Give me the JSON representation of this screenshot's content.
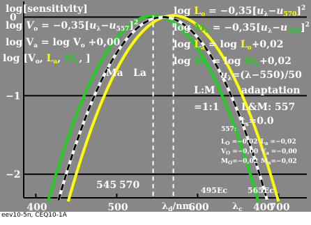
{
  "colors": {
    "background": "#878787",
    "green": "#22cc22",
    "yellow": "#ffff00",
    "white": "#ffffff",
    "black": "#000000",
    "axis": "#000000"
  },
  "header": {
    "left": {
      "line1": "log[sensitivity]",
      "line2_a": "log ",
      "line2_b": "V",
      "line2_c": "o",
      "line2_d": " = −0,35[",
      "line2_e": "u",
      "line2_f": "λ",
      "line2_g": "−",
      "line2_h": "u",
      "line2_i": "557",
      "line2_j": "]",
      "line2_k": "2",
      "line3": "log V",
      "line3_sub": "a",
      "line3_rest": " = log V",
      "line3_sub2": "o",
      "line3_end": " +0,00",
      "line4_a": "log [V",
      "line4_sub": "o",
      "line4_b": ", ",
      "line4_la": "L",
      "line4_la_sub": "a",
      "line4_c": ", ",
      "line4_ma": "M",
      "line4_ma_sub": "a",
      "line4_d": ", ]"
    },
    "right": {
      "r1_a": "log ",
      "r1_b": "L",
      "r1_c": "o",
      "r1_d": " = −0,35[",
      "r1_e": "u",
      "r1_f": "λ",
      "r1_g": "−",
      "r1_h": "u",
      "r1_i": "570",
      "r1_j": "]",
      "r1_k": "2",
      "r2_a": "log ",
      "r2_b": "M",
      "r2_c": "o",
      "r2_d": " = −0,35[",
      "r2_e": "u",
      "r2_f": "λ",
      "r2_g": "−",
      "r2_h": "u",
      "r2_i": "545",
      "r2_j": "]",
      "r2_k": "2",
      "r3_a": "log ",
      "r3_b": "L",
      "r3_c": "a",
      "r3_d": " = log ",
      "r3_e": "L",
      "r3_f": "o",
      "r3_g": "+0,02",
      "r4_a": "log ",
      "r4_b": "M",
      "r4_c": "a",
      "r4_d": " = log ",
      "r4_e": "M",
      "r4_f": "o",
      "r4_g": "+0,02",
      "r5_a": "u",
      "r5_b": "λ",
      "r5_c": "=(λ−550)/50"
    }
  },
  "panel": {
    "lm_title": "L:M",
    "lm_value": "=1:1",
    "adapt_title": "adaptation",
    "adapt_value": "L&M: 557",
    "ts": "t",
    "ts_sub": "s",
    "ts_val": "=0.0",
    "block_title": "557:",
    "rows": [
      {
        "l1": "L",
        "l1s": "O",
        "l1v": " =−0,02",
        "l2": "L",
        "l2s": "a",
        "l2v": " =−0,02"
      },
      {
        "l1": "V",
        "l1s": "O",
        "l1v": " =−0,00",
        "l2": "V",
        "l2s": "a",
        "l2v": " =−0,00"
      },
      {
        "l1": "M",
        "l1s": "O",
        "l1v": "=−0,02",
        "l2": "M",
        "l2s": "a",
        "l2v": "=−0,02"
      }
    ]
  },
  "labels": {
    "ma": "Ma",
    "la": "La",
    "l545": "545",
    "l570": "570",
    "ec495": "495Ec",
    "ec565": "565Ec",
    "xlabel_d": "λ",
    "xlabel_d_sub": "d",
    "xlabel_unit": "/nm",
    "xlabel_c": "λ",
    "xlabel_c_sub": "c"
  },
  "footer": "eev10-5n, CEQ10-1A",
  "chart_data": {
    "type": "line",
    "x_axis": {
      "ticks": [
        400,
        500,
        600,
        700
      ],
      "extra_tick_label": "400",
      "range": [
        385,
        735
      ]
    },
    "y_axis": {
      "ticks": [
        0,
        -1,
        -2
      ],
      "range": [
        -2.3,
        0.2
      ]
    },
    "series": [
      {
        "name": "M",
        "peak": 545,
        "color": "green",
        "offset": 0.02
      },
      {
        "name": "L",
        "peak": 570,
        "color": "yellow",
        "offset": 0.02
      },
      {
        "name": "V",
        "peak": 557,
        "color": "white",
        "offset": 0.0
      },
      {
        "name": "V",
        "peak": 557,
        "color": "black-dashed",
        "offset": 0.0
      }
    ],
    "formula": "log = -0.35*((λ-peak)/50)^2 + offset",
    "vertical_markers": [
      545,
      570
    ]
  }
}
